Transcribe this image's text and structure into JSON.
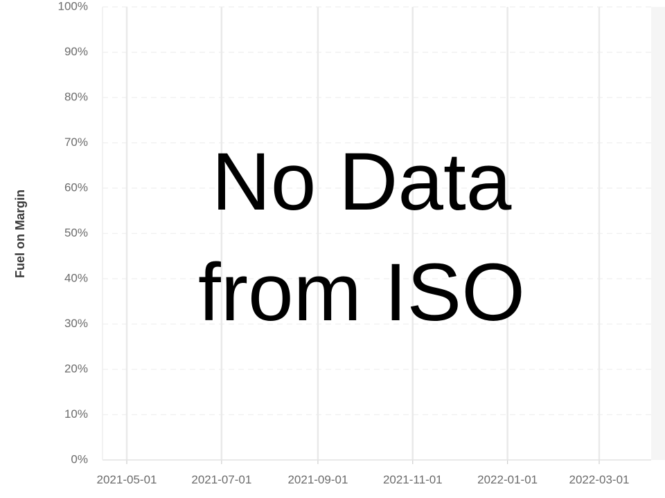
{
  "chart_data": {
    "type": "line",
    "title": "",
    "xlabel": "",
    "ylabel": "Fuel on Margin",
    "ylim": [
      0,
      100
    ],
    "y_ticks": [
      "0%",
      "10%",
      "20%",
      "30%",
      "40%",
      "50%",
      "60%",
      "70%",
      "80%",
      "90%",
      "100%"
    ],
    "x_ticks": [
      "2021-05-01",
      "2021-07-01",
      "2021-09-01",
      "2021-11-01",
      "2022-01-01",
      "2022-03-01"
    ],
    "series": [],
    "grid": true,
    "overlay_text": [
      "No Data",
      "from ISO"
    ]
  },
  "colors": {
    "grid_major": "#e9e9e9",
    "grid_minor": "#efefef",
    "tick_text": "#6b6b6b",
    "axis_label": "#3a3a3a",
    "overlay_text": "#000000",
    "right_panel": "#f5f5f5"
  }
}
